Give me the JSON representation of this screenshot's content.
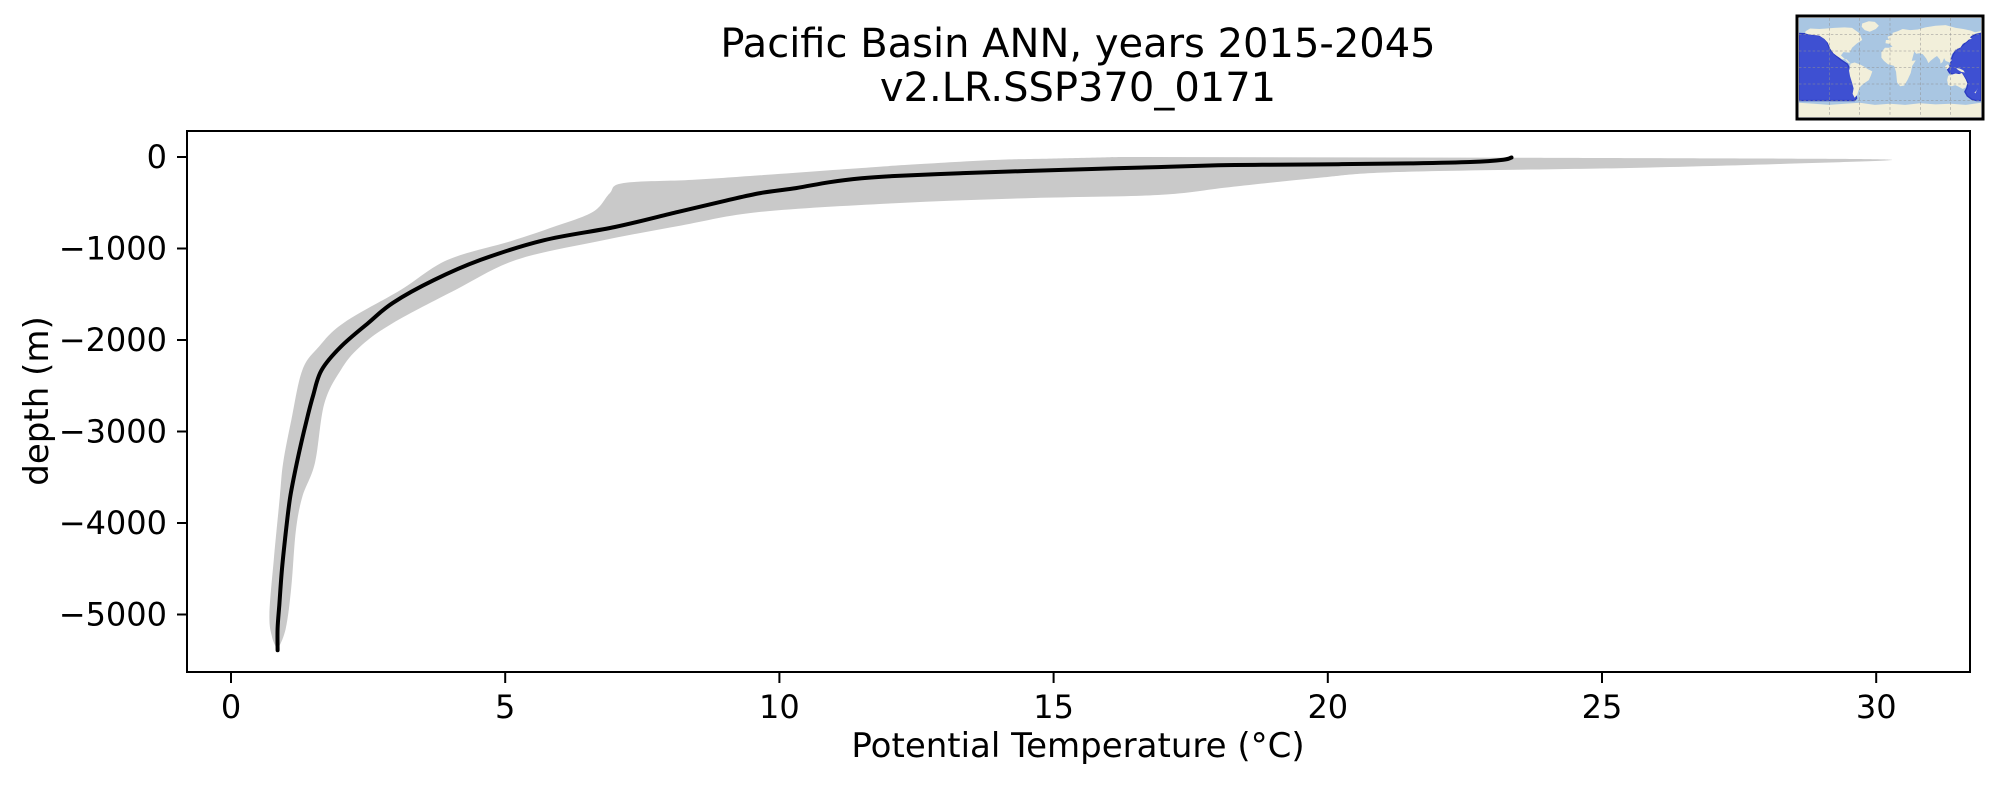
{
  "chart_data": {
    "type": "line",
    "title": "Pacific Basin ANN, years 2015-2045",
    "subtitle": "v2.LR.SSP370_0171",
    "xlabel": "Potential Temperature (°C)",
    "ylabel": "depth (m)",
    "x_ticks": [
      0,
      5,
      10,
      15,
      20,
      25,
      30
    ],
    "y_ticks": [
      0,
      -1000,
      -2000,
      -3000,
      -4000,
      -5000
    ],
    "xlim": [
      -0.8,
      31.75
    ],
    "ylim": [
      -5630,
      290
    ],
    "grid": false,
    "legend_position": "none",
    "line_color": "#000000",
    "band_color": "#c9c9c9",
    "series": [
      {
        "name": "mean potential temperature profile",
        "type": "line",
        "color": "#000000",
        "points_T_depth": [
          [
            23.35,
            -5
          ],
          [
            23.2,
            -30
          ],
          [
            22.6,
            -55
          ],
          [
            21.5,
            -70
          ],
          [
            20.2,
            -79
          ],
          [
            18.8,
            -85
          ],
          [
            18.0,
            -90
          ],
          [
            16.9,
            -110
          ],
          [
            15.7,
            -131
          ],
          [
            14.5,
            -153
          ],
          [
            13.3,
            -177
          ],
          [
            12.1,
            -208
          ],
          [
            11.5,
            -233
          ],
          [
            10.9,
            -277
          ],
          [
            10.3,
            -340
          ],
          [
            9.65,
            -394
          ],
          [
            9.0,
            -480
          ],
          [
            8.15,
            -600
          ],
          [
            7.0,
            -765
          ],
          [
            5.7,
            -910
          ],
          [
            4.55,
            -1125
          ],
          [
            3.7,
            -1345
          ],
          [
            2.95,
            -1595
          ],
          [
            2.5,
            -1815
          ],
          [
            2.0,
            -2075
          ],
          [
            1.65,
            -2330
          ],
          [
            1.5,
            -2600
          ],
          [
            1.38,
            -2875
          ],
          [
            1.2,
            -3345
          ],
          [
            1.08,
            -3715
          ],
          [
            1.0,
            -4100
          ],
          [
            0.93,
            -4500
          ],
          [
            0.88,
            -4900
          ],
          [
            0.85,
            -5150
          ],
          [
            0.85,
            -5390
          ]
        ]
      },
      {
        "name": "spread envelope (min-max shading)",
        "type": "band",
        "color": "#c9c9c9",
        "upper_T_depth": [
          [
            23.5,
            -8
          ],
          [
            26.5,
            -14
          ],
          [
            30.25,
            -28
          ],
          [
            28.3,
            -75
          ],
          [
            25.5,
            -120
          ],
          [
            21.3,
            -164
          ],
          [
            19.8,
            -230
          ],
          [
            18.2,
            -330
          ],
          [
            16.9,
            -415
          ],
          [
            14.5,
            -450
          ],
          [
            12.1,
            -505
          ],
          [
            9.65,
            -600
          ],
          [
            8.2,
            -750
          ],
          [
            6.7,
            -920
          ],
          [
            5.2,
            -1125
          ],
          [
            4.1,
            -1450
          ],
          [
            2.95,
            -1815
          ],
          [
            2.35,
            -2075
          ],
          [
            2.0,
            -2330
          ],
          [
            1.7,
            -2700
          ],
          [
            1.53,
            -3345
          ],
          [
            1.3,
            -3715
          ],
          [
            1.18,
            -4100
          ],
          [
            1.1,
            -4700
          ],
          [
            1.0,
            -5150
          ],
          [
            0.85,
            -5390
          ]
        ],
        "lower_T_depth": [
          [
            16.2,
            0
          ],
          [
            14.8,
            -20
          ],
          [
            13.9,
            -33
          ],
          [
            12.5,
            -80
          ],
          [
            11.5,
            -120
          ],
          [
            9.65,
            -200
          ],
          [
            8.4,
            -250
          ],
          [
            7.15,
            -285
          ],
          [
            6.9,
            -400
          ],
          [
            6.6,
            -600
          ],
          [
            5.9,
            -760
          ],
          [
            5.1,
            -920
          ],
          [
            3.95,
            -1125
          ],
          [
            3.1,
            -1450
          ],
          [
            2.05,
            -1815
          ],
          [
            1.6,
            -2075
          ],
          [
            1.3,
            -2330
          ],
          [
            1.1,
            -2875
          ],
          [
            0.95,
            -3345
          ],
          [
            0.89,
            -3715
          ],
          [
            0.78,
            -4400
          ],
          [
            0.7,
            -5000
          ],
          [
            0.75,
            -5250
          ],
          [
            0.85,
            -5390
          ]
        ]
      }
    ],
    "inset_map": {
      "description": "world map inset with Pacific Basin region highlighted",
      "highlight_color": "#3e50d2",
      "highlight_edge_color": "#2a3ac0",
      "ocean_color": "#a9c6e2",
      "land_color": "#f2efda",
      "grid_color": "#909090"
    }
  }
}
